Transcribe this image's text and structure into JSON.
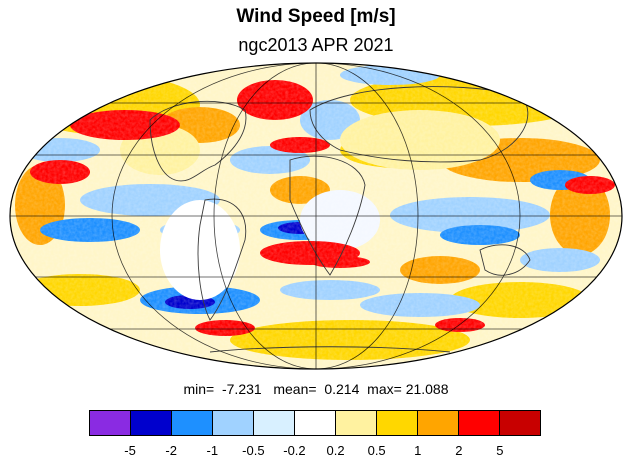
{
  "header": {
    "title": "Wind Speed [m/s]",
    "subtitle": "ngc2013 APR 2021"
  },
  "stats": {
    "min_label": "min=",
    "min_value": "-7.231",
    "mean_label": "mean=",
    "mean_value": "0.214",
    "max_label": "max=",
    "max_value": "21.088"
  },
  "map": {
    "projection": "mollweide",
    "land_outline_color": "#3a3a3a",
    "graticule_color": "#000000"
  },
  "colorbar": {
    "colors": [
      "#8a2be2",
      "#0000cd",
      "#1e90ff",
      "#a0d2ff",
      "#d8f0ff",
      "#ffffff",
      "#fff2a0",
      "#ffd700",
      "#ffa500",
      "#ff0000",
      "#c80000"
    ],
    "tick_labels": [
      "-5",
      "-2",
      "-1",
      "-0.5",
      "-0.2",
      "0.2",
      "0.5",
      "1",
      "2",
      "5"
    ]
  }
}
